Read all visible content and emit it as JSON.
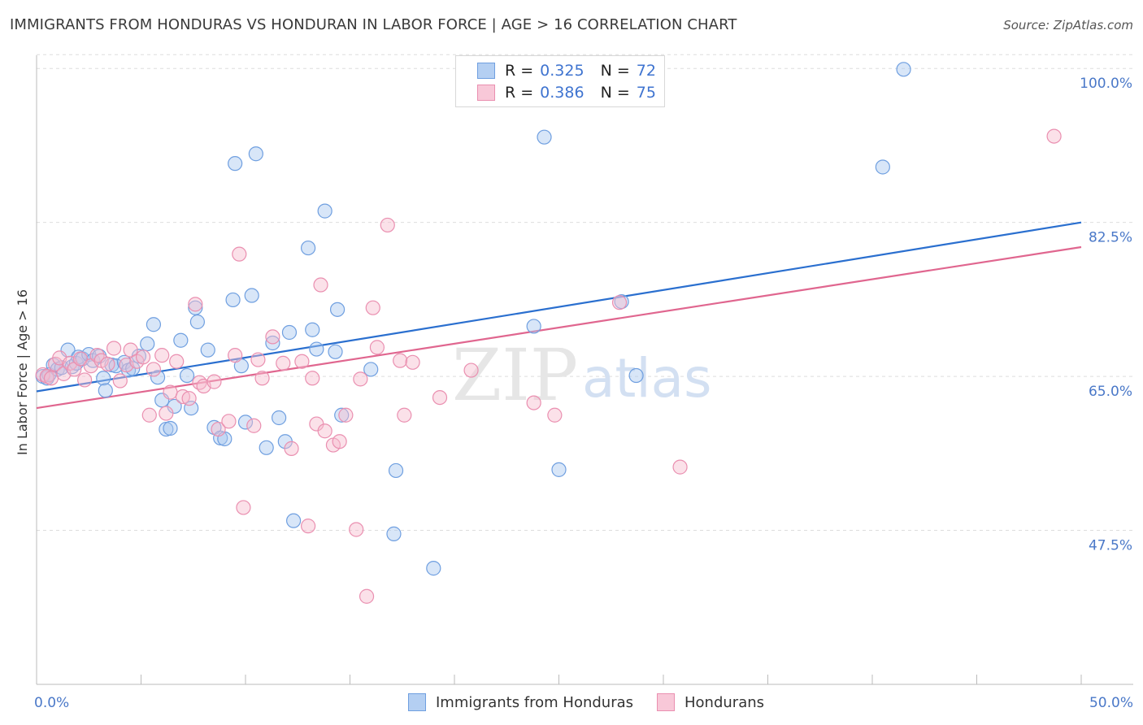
{
  "title": "IMMIGRANTS FROM HONDURAS VS HONDURAN IN LABOR FORCE | AGE > 16 CORRELATION CHART",
  "source": "Source: ZipAtlas.com",
  "watermark": {
    "zip": "ZIP",
    "atlas": "atlas"
  },
  "colors": {
    "blue_fill": "#a8c8f0",
    "blue_stroke": "#6f9fe0",
    "blue_line": "#2a6fcf",
    "pink_fill": "#f6bccf",
    "pink_stroke": "#ea8fb0",
    "pink_line": "#e0668f",
    "axis_text": "#4a78c8",
    "grid": "#dddddd"
  },
  "legend": {
    "rows": [
      {
        "r_label": "R =",
        "r_value": "0.325",
        "n_label": "N =",
        "n_value": "72"
      },
      {
        "r_label": "R =",
        "r_value": "0.386",
        "n_label": "N =",
        "n_value": "75"
      }
    ]
  },
  "bottom_legend": [
    "Immigrants from Honduras",
    "Hondurans"
  ],
  "chart_data": {
    "type": "scatter",
    "title": "IMMIGRANTS FROM HONDURAS VS HONDURAN IN LABOR FORCE | AGE > 16 CORRELATION CHART",
    "xlabel": "",
    "ylabel": "In Labor Force | Age > 16",
    "xlim": [
      0,
      50
    ],
    "ylim": [
      30,
      101.5
    ],
    "x_tick_labels": [
      "0.0%",
      "50.0%"
    ],
    "y_ticks": [
      47.5,
      65.0,
      82.5,
      100.0
    ],
    "y_tick_labels": [
      "47.5%",
      "65.0%",
      "82.5%",
      "100.0%"
    ],
    "grid": true,
    "series": [
      {
        "name": "Immigrants from Honduras",
        "color": "blue",
        "trend": {
          "x": [
            0,
            50
          ],
          "y": [
            63.3,
            82.5
          ]
        },
        "points": [
          [
            0.3,
            65.0
          ],
          [
            0.5,
            64.8
          ],
          [
            0.6,
            65.2
          ],
          [
            0.8,
            66.3
          ],
          [
            1.0,
            65.8
          ],
          [
            1.2,
            66.0
          ],
          [
            1.5,
            68.0
          ],
          [
            1.7,
            66.1
          ],
          [
            1.9,
            66.5
          ],
          [
            2.0,
            67.2
          ],
          [
            2.2,
            67.0
          ],
          [
            2.5,
            67.5
          ],
          [
            2.7,
            66.8
          ],
          [
            3.0,
            67.3
          ],
          [
            3.2,
            64.8
          ],
          [
            3.3,
            63.4
          ],
          [
            3.6,
            66.3
          ],
          [
            3.8,
            66.2
          ],
          [
            4.2,
            66.6
          ],
          [
            4.4,
            65.7
          ],
          [
            4.6,
            65.9
          ],
          [
            4.9,
            67.3
          ],
          [
            5.3,
            68.7
          ],
          [
            5.6,
            70.9
          ],
          [
            5.8,
            64.9
          ],
          [
            6.0,
            62.3
          ],
          [
            6.2,
            59.0
          ],
          [
            6.4,
            59.1
          ],
          [
            6.6,
            61.6
          ],
          [
            6.9,
            69.1
          ],
          [
            7.2,
            65.1
          ],
          [
            7.4,
            61.4
          ],
          [
            7.6,
            72.8
          ],
          [
            7.7,
            71.2
          ],
          [
            8.2,
            68.0
          ],
          [
            8.5,
            59.2
          ],
          [
            8.8,
            58.0
          ],
          [
            9.0,
            57.9
          ],
          [
            9.4,
            73.7
          ],
          [
            9.5,
            89.2
          ],
          [
            9.8,
            66.2
          ],
          [
            10.0,
            59.8
          ],
          [
            10.3,
            74.2
          ],
          [
            10.5,
            90.3
          ],
          [
            11.0,
            56.9
          ],
          [
            11.3,
            68.8
          ],
          [
            11.6,
            60.3
          ],
          [
            11.9,
            57.6
          ],
          [
            12.1,
            70.0
          ],
          [
            12.3,
            48.6
          ],
          [
            13.0,
            79.6
          ],
          [
            13.2,
            70.3
          ],
          [
            13.4,
            68.1
          ],
          [
            13.8,
            83.8
          ],
          [
            14.3,
            67.8
          ],
          [
            14.4,
            72.6
          ],
          [
            14.6,
            60.6
          ],
          [
            16.0,
            65.8
          ],
          [
            17.1,
            47.1
          ],
          [
            17.2,
            54.3
          ],
          [
            19.0,
            43.2
          ],
          [
            23.8,
            70.7
          ],
          [
            24.3,
            92.2
          ],
          [
            25.0,
            54.4
          ],
          [
            28.0,
            73.5
          ],
          [
            28.7,
            65.1
          ],
          [
            40.5,
            88.8
          ],
          [
            41.5,
            99.9
          ]
        ]
      },
      {
        "name": "Hondurans",
        "color": "pink",
        "trend": {
          "x": [
            0,
            50
          ],
          "y": [
            61.4,
            79.7
          ]
        },
        "points": [
          [
            0.3,
            65.2
          ],
          [
            0.5,
            65.0
          ],
          [
            0.7,
            64.8
          ],
          [
            0.9,
            66.4
          ],
          [
            1.1,
            67.1
          ],
          [
            1.3,
            65.3
          ],
          [
            1.6,
            66.5
          ],
          [
            1.8,
            65.8
          ],
          [
            2.1,
            67.0
          ],
          [
            2.3,
            64.6
          ],
          [
            2.6,
            66.2
          ],
          [
            2.9,
            67.4
          ],
          [
            3.1,
            66.8
          ],
          [
            3.4,
            66.4
          ],
          [
            3.7,
            68.2
          ],
          [
            4.0,
            64.5
          ],
          [
            4.3,
            66.3
          ],
          [
            4.5,
            68.0
          ],
          [
            4.8,
            66.7
          ],
          [
            5.1,
            67.2
          ],
          [
            5.4,
            60.6
          ],
          [
            5.6,
            65.8
          ],
          [
            6.0,
            67.4
          ],
          [
            6.2,
            60.8
          ],
          [
            6.4,
            63.2
          ],
          [
            6.7,
            66.7
          ],
          [
            7.0,
            62.7
          ],
          [
            7.3,
            62.5
          ],
          [
            7.6,
            73.2
          ],
          [
            7.8,
            64.3
          ],
          [
            8.0,
            63.9
          ],
          [
            8.5,
            64.4
          ],
          [
            8.7,
            59.0
          ],
          [
            9.2,
            59.9
          ],
          [
            9.5,
            67.4
          ],
          [
            9.7,
            78.9
          ],
          [
            9.9,
            50.1
          ],
          [
            10.4,
            59.4
          ],
          [
            10.6,
            66.9
          ],
          [
            10.8,
            64.8
          ],
          [
            11.3,
            69.5
          ],
          [
            11.8,
            66.5
          ],
          [
            12.2,
            56.8
          ],
          [
            12.7,
            66.7
          ],
          [
            13.0,
            48.0
          ],
          [
            13.2,
            64.8
          ],
          [
            13.4,
            59.6
          ],
          [
            13.6,
            75.4
          ],
          [
            13.8,
            58.8
          ],
          [
            14.2,
            57.2
          ],
          [
            14.5,
            57.6
          ],
          [
            14.8,
            60.6
          ],
          [
            15.3,
            47.6
          ],
          [
            15.5,
            64.7
          ],
          [
            15.8,
            40.0
          ],
          [
            16.1,
            72.8
          ],
          [
            16.3,
            68.3
          ],
          [
            16.8,
            82.2
          ],
          [
            17.4,
            66.8
          ],
          [
            17.6,
            60.6
          ],
          [
            18.0,
            66.6
          ],
          [
            19.3,
            62.6
          ],
          [
            20.8,
            65.7
          ],
          [
            23.8,
            62.0
          ],
          [
            24.8,
            60.6
          ],
          [
            27.9,
            73.4
          ],
          [
            30.8,
            54.7
          ],
          [
            48.7,
            92.3
          ]
        ]
      }
    ]
  }
}
